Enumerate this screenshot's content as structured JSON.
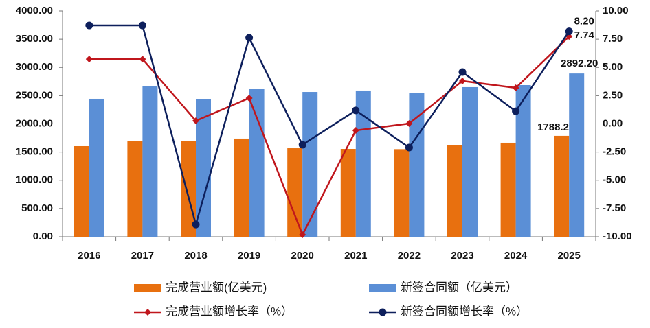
{
  "chart_data": {
    "type": "bar",
    "categories": [
      "2016",
      "2017",
      "2018",
      "2019",
      "2020",
      "2021",
      "2022",
      "2023",
      "2024",
      "2025"
    ],
    "series": [
      {
        "name": "完成营业额(亿美元)",
        "type": "bar",
        "color": "#e8700f",
        "axis": "y",
        "values": [
          1605,
          1690,
          1702,
          1739,
          1568,
          1556,
          1552,
          1617,
          1666,
          1788.2
        ],
        "value_labels": [
          null,
          null,
          null,
          null,
          null,
          null,
          null,
          null,
          null,
          "1788.20"
        ]
      },
      {
        "name": "新签合同额（亿美元）",
        "type": "bar",
        "color": "#5b8fd6",
        "axis": "y",
        "values": [
          2444,
          2663,
          2432,
          2614,
          2565,
          2590,
          2541,
          2651,
          2687,
          2892.2
        ],
        "value_labels": [
          null,
          null,
          null,
          null,
          null,
          null,
          null,
          null,
          null,
          "2892.20"
        ]
      },
      {
        "name": "完成营业额增长率（%）",
        "type": "line",
        "marker": "diamond",
        "color": "#c0161c",
        "axis": "y2",
        "values": [
          5.74,
          5.74,
          0.27,
          2.28,
          -9.82,
          -0.58,
          0.03,
          3.8,
          3.19,
          7.74
        ],
        "value_labels": [
          null,
          null,
          null,
          null,
          null,
          null,
          null,
          null,
          null,
          "7.74"
        ]
      },
      {
        "name": "新签合同额增长率（%）",
        "type": "line",
        "marker": "circle",
        "color": "#0d1f5c",
        "axis": "y2",
        "values": [
          8.72,
          8.72,
          -8.91,
          7.63,
          -1.85,
          1.19,
          -2.1,
          4.59,
          1.12,
          8.2
        ],
        "value_labels": [
          null,
          null,
          null,
          null,
          null,
          null,
          null,
          null,
          null,
          "8.20"
        ]
      }
    ],
    "ylim": [
      0,
      4000
    ],
    "yticks": [
      {
        "value": 0,
        "label": "0.00"
      },
      {
        "value": 500,
        "label": "500.00"
      },
      {
        "value": 1000,
        "label": "1000.00"
      },
      {
        "value": 1500,
        "label": "1500.00"
      },
      {
        "value": 2000,
        "label": "2000.00"
      },
      {
        "value": 2500,
        "label": "2500.00"
      },
      {
        "value": 3000,
        "label": "3000.00"
      },
      {
        "value": 3500,
        "label": "3500.00"
      },
      {
        "value": 4000,
        "label": "4000.00"
      }
    ],
    "y2lim": [
      -10,
      10
    ],
    "y2ticks": [
      {
        "value": -10,
        "label": "-10.00"
      },
      {
        "value": -7.5,
        "label": "-7.50"
      },
      {
        "value": -5,
        "label": "-5.00"
      },
      {
        "value": -2.5,
        "label": "-2.50"
      },
      {
        "value": 0,
        "label": "0.00"
      },
      {
        "value": 2.5,
        "label": "2.50"
      },
      {
        "value": 5,
        "label": "5.00"
      },
      {
        "value": 7.5,
        "label": "7.50"
      },
      {
        "value": 10,
        "label": "10.00"
      }
    ],
    "grid": false,
    "legend": "bottom"
  }
}
